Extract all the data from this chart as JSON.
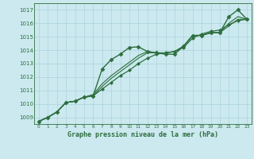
{
  "title": "Graphe pression niveau de la mer (hPa)",
  "background_color": "#cce9ef",
  "grid_color": "#aad4db",
  "line_color": "#2d6e3e",
  "xlim": [
    -0.5,
    23.5
  ],
  "ylim": [
    1008.5,
    1017.5
  ],
  "yticks": [
    1009,
    1010,
    1011,
    1012,
    1013,
    1014,
    1015,
    1016,
    1017
  ],
  "xticks": [
    0,
    1,
    2,
    3,
    4,
    5,
    6,
    7,
    8,
    9,
    10,
    11,
    12,
    13,
    14,
    15,
    16,
    17,
    18,
    19,
    20,
    21,
    22,
    23
  ],
  "series": [
    {
      "x": [
        0,
        1,
        2,
        3,
        4,
        5,
        6,
        7,
        8,
        9,
        10,
        11,
        12,
        13,
        14,
        15,
        16,
        17,
        18,
        19,
        20,
        21,
        22,
        23
      ],
      "y": [
        1008.7,
        1009.0,
        1009.4,
        1010.1,
        1010.2,
        1010.5,
        1010.6,
        1012.6,
        1013.3,
        1013.7,
        1014.2,
        1014.25,
        1013.9,
        1013.8,
        1013.7,
        1013.7,
        1014.3,
        1015.1,
        1015.1,
        1015.3,
        1015.3,
        1016.5,
        1017.0,
        1016.3
      ],
      "marker": "D",
      "markersize": 2.5,
      "linewidth": 1.0
    },
    {
      "x": [
        0,
        1,
        2,
        3,
        4,
        5,
        6,
        7,
        8,
        9,
        10,
        11,
        12,
        13,
        14,
        15,
        16,
        17,
        18,
        19,
        20,
        21,
        22,
        23
      ],
      "y": [
        1008.7,
        1009.0,
        1009.4,
        1010.1,
        1010.2,
        1010.5,
        1010.6,
        1011.1,
        1011.6,
        1012.1,
        1012.5,
        1013.0,
        1013.4,
        1013.7,
        1013.8,
        1013.9,
        1014.2,
        1014.9,
        1015.2,
        1015.4,
        1015.5,
        1015.9,
        1016.2,
        1016.3
      ],
      "marker": "D",
      "markersize": 2.0,
      "linewidth": 0.9
    },
    {
      "x": [
        0,
        1,
        2,
        3,
        4,
        5,
        6,
        7,
        8,
        9,
        10,
        11,
        12,
        13,
        14,
        15,
        16,
        17,
        18,
        19,
        20,
        21,
        22,
        23
      ],
      "y": [
        1008.7,
        1009.0,
        1009.4,
        1010.1,
        1010.2,
        1010.5,
        1010.7,
        1011.5,
        1012.1,
        1012.6,
        1013.1,
        1013.6,
        1013.9,
        1013.8,
        1013.8,
        1013.9,
        1014.3,
        1015.1,
        1015.1,
        1015.3,
        1015.3,
        1016.0,
        1016.5,
        1016.3
      ],
      "marker": null,
      "markersize": 0,
      "linewidth": 0.8
    },
    {
      "x": [
        0,
        1,
        2,
        3,
        4,
        5,
        6,
        7,
        8,
        9,
        10,
        11,
        12,
        13,
        14,
        15,
        16,
        17,
        18,
        19,
        20,
        21,
        22,
        23
      ],
      "y": [
        1008.7,
        1009.0,
        1009.4,
        1010.1,
        1010.2,
        1010.5,
        1010.6,
        1011.3,
        1011.9,
        1012.4,
        1012.9,
        1013.4,
        1013.8,
        1013.8,
        1013.8,
        1013.9,
        1014.3,
        1015.1,
        1015.1,
        1015.3,
        1015.3,
        1015.8,
        1016.3,
        1016.3
      ],
      "marker": null,
      "markersize": 0,
      "linewidth": 0.8
    }
  ]
}
